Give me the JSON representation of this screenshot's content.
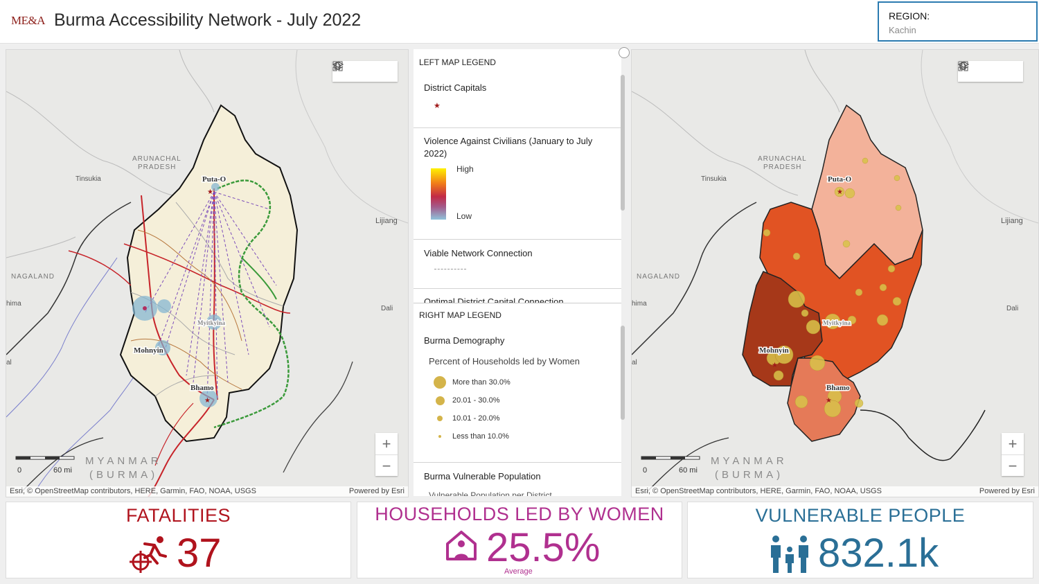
{
  "header": {
    "logo": "ME&A",
    "title": "Burma Accessibility Network - July 2022",
    "region_label": "REGION:",
    "region_value": "Kachin"
  },
  "map_tools": {
    "home": "home-icon",
    "layers": "layers-icon",
    "basemap": "basemap-gallery-icon"
  },
  "left_map": {
    "places": [
      "Puta-O",
      "Myitkyina",
      "Mohnyin",
      "Bhamo"
    ],
    "labels": {
      "arunachal": "ARUNACHAL",
      "pradesh": "PRADESH",
      "tinsukia": "Tinsukia",
      "nagaland": "NAGALAND",
      "lijiang": "Lijiang",
      "dali": "Dali",
      "hima": "hima",
      "al": "al",
      "myanmar": "MYANMAR",
      "burma": "(BURMA)"
    },
    "scale_0": "0",
    "scale_60": "60 mi",
    "attribution": "Esri, © OpenStreetMap contributors, HERE, Garmin, FAO, NOAA, USGS",
    "powered": "Powered by Esri"
  },
  "right_map": {
    "places": [
      "Puta-O",
      "Myitkyina",
      "Mohnyin",
      "Bhamo"
    ],
    "scale_0": "0",
    "scale_60": "60 mi",
    "attribution": "Esri, © OpenStreetMap contributors, HERE, Garmin, FAO, NOAA, USGS",
    "powered": "Powered by Esri"
  },
  "zoom": {
    "in": "+",
    "out": "−"
  },
  "legend": {
    "left_header": "LEFT MAP LEGEND",
    "district_capitals": "District Capitals",
    "violence_title": "Violence Against Civilians (January to July 2022)",
    "high": "High",
    "low": "Low",
    "viable": "Viable Network Connection",
    "optimal": "Optimal District Capital Connection",
    "right_header": "RIGHT MAP LEGEND",
    "demography": "Burma Demography",
    "percent_title": "Percent of Households led by Women",
    "classes": [
      "More than 30.0%",
      "20.01 - 30.0%",
      "10.01 - 20.0%",
      "Less than 10.0%"
    ],
    "vulnerable": "Burma Vulnerable Population",
    "vulnerable_sub": "Vulnerable Population per District"
  },
  "cards": {
    "fatalities": {
      "title": "FATALITIES",
      "value": "37",
      "color": "#b0131d"
    },
    "households": {
      "title": "HOUSEHOLDS LED BY WOMEN",
      "value": "25.5%",
      "sub": "Average",
      "color": "#b0308f"
    },
    "vulnerable": {
      "title": "VULNERABLE PEOPLE",
      "value": "832.1k",
      "color": "#2a6f96"
    }
  }
}
